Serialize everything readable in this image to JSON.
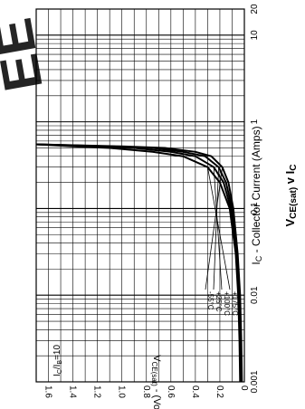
{
  "watermark": {
    "text": "EE",
    "color": "#e8333a"
  },
  "chart_data": {
    "type": "line",
    "title": "VCE(sat) v IC",
    "title_parts": {
      "main": "V",
      "sub": "CE(sat)",
      "mid": " v ",
      "end": "I",
      "end_sub": "C"
    },
    "xlabel": "IC - Collector Current (Amps)",
    "xlabel_parts": {
      "i": "I",
      "sub": "C",
      "rest": " - Collector Current (Amps)"
    },
    "ylabel": "VCE(sat) - (Volts)",
    "ylabel_parts": {
      "v": "V",
      "sub": "CE(sat)",
      "rest": " - (Volts)"
    },
    "x_scale": "log",
    "xlim": [
      0.001,
      20
    ],
    "ylim": [
      0,
      1.7
    ],
    "x_ticks": [
      {
        "value": 0.001,
        "label": "0.001"
      },
      {
        "value": 0.01,
        "label": "0.01"
      },
      {
        "value": 0.1,
        "label": "0.1"
      },
      {
        "value": 1,
        "label": "1"
      },
      {
        "value": 10,
        "label": "10"
      },
      {
        "value": 20,
        "label": "20"
      }
    ],
    "y_ticks": [
      {
        "value": 0,
        "label": "0"
      },
      {
        "value": 0.2,
        "label": "0.2"
      },
      {
        "value": 0.4,
        "label": "0.4"
      },
      {
        "value": 0.6,
        "label": "0.6"
      },
      {
        "value": 0.8,
        "label": "0.8"
      },
      {
        "value": 1.0,
        "label": "1.0"
      },
      {
        "value": 1.2,
        "label": "1.2"
      },
      {
        "value": 1.4,
        "label": "1.4"
      },
      {
        "value": 1.6,
        "label": "1.6"
      }
    ],
    "grid": true,
    "annotation": "IC/IB=10",
    "annotation_parts": {
      "i1": "I",
      "s1": "C",
      "mid": "/I",
      "s2": "B",
      "end": "=10"
    },
    "series": [
      {
        "name": "-55°C",
        "x": [
          0.001,
          0.003,
          0.01,
          0.03,
          0.1,
          0.2,
          0.3,
          0.4,
          0.45,
          0.5,
          0.52,
          0.55
        ],
        "y": [
          0.02,
          0.025,
          0.035,
          0.055,
          0.09,
          0.13,
          0.18,
          0.27,
          0.4,
          0.65,
          1.0,
          1.7
        ]
      },
      {
        "name": "+25°C",
        "x": [
          0.001,
          0.003,
          0.01,
          0.03,
          0.1,
          0.2,
          0.3,
          0.4,
          0.45,
          0.5,
          0.52,
          0.55
        ],
        "y": [
          0.025,
          0.03,
          0.04,
          0.06,
          0.1,
          0.15,
          0.21,
          0.32,
          0.5,
          0.75,
          1.1,
          1.7
        ]
      },
      {
        "name": "+100°C",
        "x": [
          0.001,
          0.003,
          0.01,
          0.03,
          0.1,
          0.2,
          0.3,
          0.4,
          0.45,
          0.5,
          0.52,
          0.55
        ],
        "y": [
          0.03,
          0.035,
          0.045,
          0.065,
          0.11,
          0.17,
          0.25,
          0.4,
          0.6,
          0.9,
          1.25,
          1.7
        ]
      },
      {
        "name": "+175°C",
        "x": [
          0.001,
          0.003,
          0.01,
          0.03,
          0.1,
          0.2,
          0.3,
          0.4,
          0.45,
          0.5,
          0.52,
          0.55
        ],
        "y": [
          0.035,
          0.04,
          0.05,
          0.07,
          0.12,
          0.2,
          0.3,
          0.5,
          0.75,
          1.1,
          1.4,
          1.7
        ]
      }
    ]
  }
}
